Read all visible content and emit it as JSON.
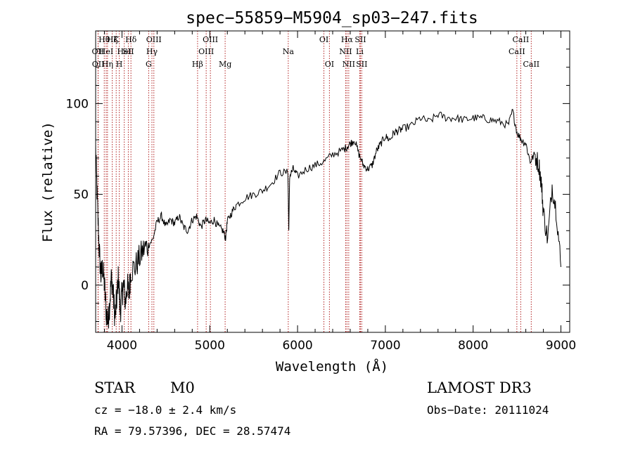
{
  "chart_data": {
    "type": "line",
    "title": "spec−55859−M5904_sp03−247.fits",
    "xlabel": "Wavelength (Å)",
    "ylabel": "Flux (relative)",
    "xlim": [
      3700,
      9100
    ],
    "ylim": [
      -26,
      140
    ],
    "x_ticks": [
      4000,
      5000,
      6000,
      7000,
      8000,
      9000
    ],
    "y_ticks": [
      0,
      50,
      100
    ],
    "series": [
      {
        "name": "spectrum",
        "x": [
          3700,
          3720,
          3740,
          3760,
          3780,
          3800,
          3820,
          3840,
          3860,
          3880,
          3900,
          3920,
          3940,
          3960,
          3980,
          4000,
          4020,
          4040,
          4060,
          4080,
          4100,
          4150,
          4200,
          4250,
          4300,
          4350,
          4400,
          4450,
          4500,
          4550,
          4600,
          4650,
          4700,
          4750,
          4800,
          4850,
          4900,
          4950,
          5000,
          5050,
          5100,
          5150,
          5180,
          5200,
          5250,
          5300,
          5400,
          5500,
          5600,
          5700,
          5800,
          5890,
          5900,
          5910,
          5950,
          6000,
          6100,
          6200,
          6300,
          6400,
          6500,
          6560,
          6600,
          6650,
          6700,
          6750,
          6800,
          6850,
          6900,
          6950,
          7000,
          7050,
          7100,
          7150,
          7200,
          7300,
          7400,
          7500,
          7600,
          7700,
          7800,
          7900,
          8000,
          8100,
          8200,
          8300,
          8400,
          8450,
          8500,
          8550,
          8600,
          8650,
          8700,
          8750,
          8780,
          8800,
          8850,
          8900,
          8950,
          9000
        ],
        "values": [
          75,
          45,
          20,
          5,
          10,
          0,
          -15,
          -20,
          -10,
          5,
          -5,
          -18,
          -8,
          5,
          -15,
          -5,
          0,
          -10,
          0,
          -5,
          8,
          10,
          15,
          20,
          22,
          25,
          35,
          38,
          32,
          36,
          34,
          38,
          32,
          30,
          36,
          38,
          32,
          36,
          34,
          36,
          32,
          30,
          26,
          35,
          40,
          44,
          48,
          50,
          52,
          56,
          62,
          62,
          30,
          60,
          64,
          60,
          64,
          66,
          68,
          72,
          74,
          76,
          78,
          80,
          72,
          66,
          64,
          66,
          74,
          78,
          82,
          80,
          84,
          85,
          86,
          88,
          92,
          90,
          94,
          92,
          92,
          91,
          92,
          92,
          91,
          90,
          88,
          96,
          84,
          80,
          78,
          68,
          72,
          66,
          55,
          40,
          25,
          55,
          40,
          10
        ]
      }
    ],
    "emission_lines": [
      {
        "wavelength": 3727,
        "label": "OII",
        "row": 1
      },
      {
        "wavelength": 3729,
        "label": "OII",
        "row": 2
      },
      {
        "wavelength": 3798,
        "label": "Hθ",
        "row": 0
      },
      {
        "wavelength": 3820,
        "label": "HeI",
        "row": 1
      },
      {
        "wavelength": 3835,
        "label": "Hη",
        "row": 2
      },
      {
        "wavelength": 3889,
        "label": "Hζ",
        "row": 0
      },
      {
        "wavelength": 3934,
        "label": "K",
        "row": 0
      },
      {
        "wavelength": 3969,
        "label": "H",
        "row": 2
      },
      {
        "wavelength": 4026,
        "label": "HeI",
        "row": 1
      },
      {
        "wavelength": 4072,
        "label": "SII",
        "row": 1
      },
      {
        "wavelength": 4102,
        "label": "Hδ",
        "row": 0
      },
      {
        "wavelength": 4304,
        "label": "G",
        "row": 2
      },
      {
        "wavelength": 4341,
        "label": "Hγ",
        "row": 1
      },
      {
        "wavelength": 4363,
        "label": "OIII",
        "row": 0
      },
      {
        "wavelength": 4861,
        "label": "Hβ",
        "row": 2
      },
      {
        "wavelength": 4959,
        "label": "OIII",
        "row": 1
      },
      {
        "wavelength": 5007,
        "label": "OIII",
        "row": 0
      },
      {
        "wavelength": 5175,
        "label": "Mg",
        "row": 2
      },
      {
        "wavelength": 5894,
        "label": "Na",
        "row": 1
      },
      {
        "wavelength": 6300,
        "label": "OI",
        "row": 0
      },
      {
        "wavelength": 6363,
        "label": "OI",
        "row": 2
      },
      {
        "wavelength": 6548,
        "label": "NII",
        "row": 1
      },
      {
        "wavelength": 6563,
        "label": "Hα",
        "row": 0
      },
      {
        "wavelength": 6583,
        "label": "NII",
        "row": 2
      },
      {
        "wavelength": 6708,
        "label": "Li",
        "row": 1
      },
      {
        "wavelength": 6716,
        "label": "SII",
        "row": 0
      },
      {
        "wavelength": 6731,
        "label": "SII",
        "row": 2
      },
      {
        "wavelength": 8498,
        "label": "CaII",
        "row": 1
      },
      {
        "wavelength": 8542,
        "label": "CaII",
        "row": 0
      },
      {
        "wavelength": 8662,
        "label": "CaII",
        "row": 2
      }
    ],
    "line_color": "#b22222",
    "spectrum_color": "#000000"
  },
  "info": {
    "class": "STAR",
    "subclass": "M0",
    "survey": "LAMOST DR3",
    "cz": "cz = −18.0 ± 2.4 km/s",
    "obs_date": "Obs−Date: 20111024",
    "radec": "RA =  79.57396, DEC =  28.57474"
  }
}
